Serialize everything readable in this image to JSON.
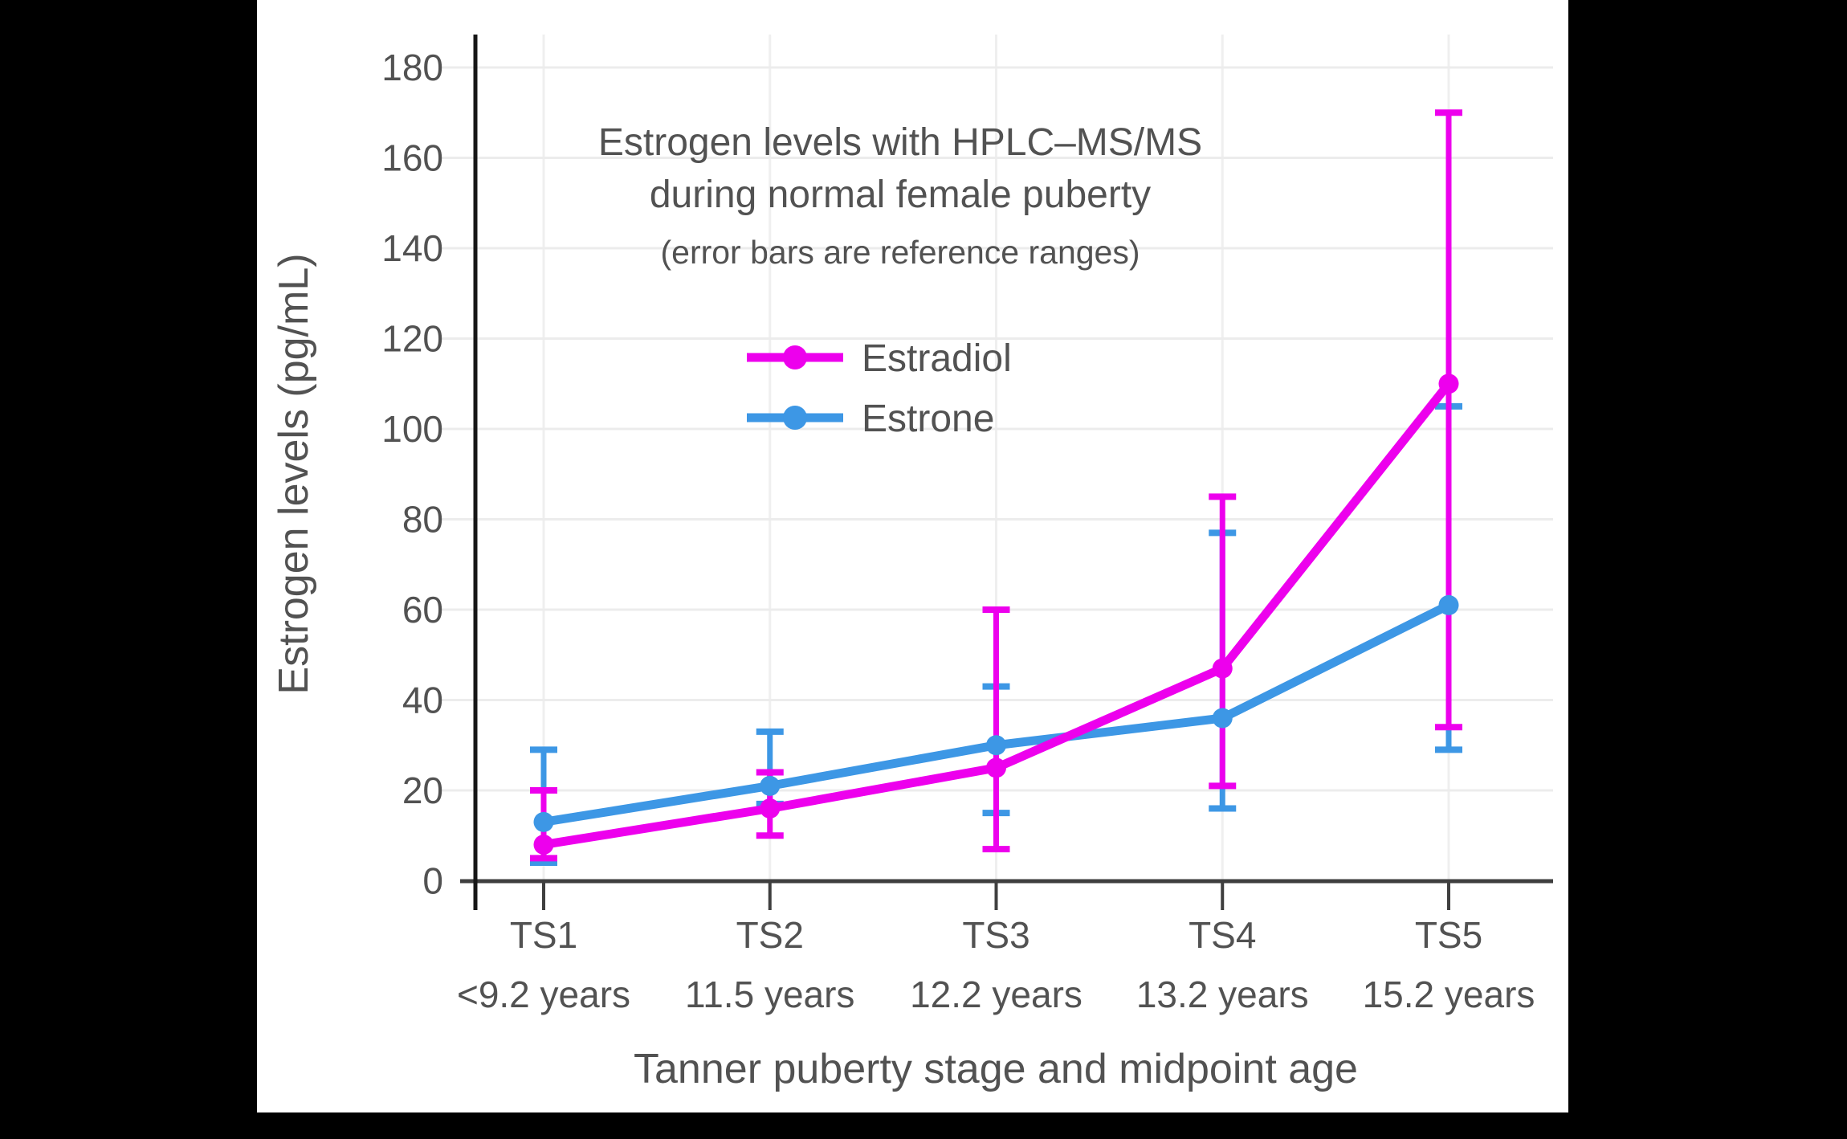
{
  "canvas": {
    "background_color": "#000000",
    "panel_color": "#ffffff"
  },
  "chart_data": {
    "type": "line",
    "title": "Estrogen levels with HPLC–MS/MS",
    "title_line2": "during normal female puberty",
    "subtitle": "(error bars are reference ranges)",
    "xlabel": "Tanner puberty stage and midpoint age",
    "ylabel": "Estrogen levels (pg/mL)",
    "categories": [
      "TS1",
      "TS2",
      "TS3",
      "TS4",
      "TS5"
    ],
    "category_sublabels": [
      "<9.2 years",
      "11.5 years",
      "12.2 years",
      "13.2 years",
      "15.2 years"
    ],
    "y_ticks": [
      0,
      20,
      40,
      60,
      80,
      100,
      120,
      140,
      160,
      180
    ],
    "ylim": [
      0,
      187
    ],
    "grid": true,
    "legend_position": "upper-center-inside",
    "series": [
      {
        "name": "Estradiol",
        "color": "#ED00ED",
        "values": [
          8,
          16,
          25,
          47,
          110
        ],
        "error_low": [
          5,
          10,
          7,
          21,
          34
        ],
        "error_high": [
          20,
          24,
          60,
          85,
          170
        ]
      },
      {
        "name": "Estrone",
        "color": "#3D97E5",
        "values": [
          13,
          21,
          30,
          36,
          61
        ],
        "error_low": [
          4,
          17,
          15,
          16,
          29
        ],
        "error_high": [
          29,
          33,
          43,
          77,
          105
        ]
      }
    ],
    "style_colors": {
      "grid": "#ECECEC",
      "x_axis": "#3F3F3F",
      "y_spine": "#161616",
      "text": "#525252"
    }
  }
}
